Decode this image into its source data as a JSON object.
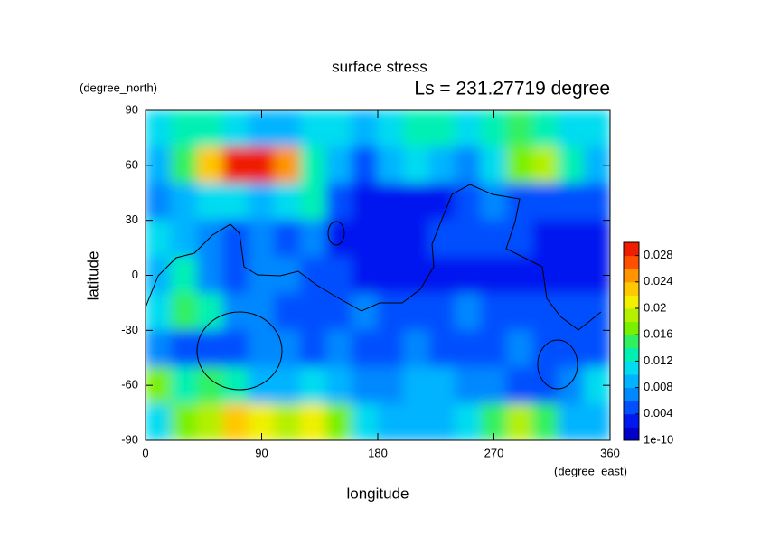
{
  "chart_data": {
    "type": "heatmap",
    "title": "surface stress",
    "subtitle": "Ls = 231.27719 degree",
    "xlabel": "longitude",
    "xunit": "(degree_east)",
    "ylabel": "latitude",
    "yunit": "(degree_north)",
    "xlim": [
      0,
      360
    ],
    "xticks": [
      0,
      90,
      180,
      270,
      360
    ],
    "ylim": [
      -90,
      90
    ],
    "yticks": [
      -90,
      -60,
      -30,
      0,
      30,
      60,
      90
    ],
    "x": [
      10,
      30,
      50,
      70,
      90,
      110,
      130,
      150,
      170,
      190,
      210,
      230,
      250,
      270,
      290,
      310,
      330,
      350
    ],
    "y": [
      80,
      60,
      40,
      20,
      0,
      -20,
      -40,
      -60,
      -80
    ],
    "z": [
      [
        0.01,
        0.012,
        0.012,
        0.01,
        0.008,
        0.008,
        0.01,
        0.01,
        0.008,
        0.01,
        0.012,
        0.012,
        0.01,
        0.012,
        0.014,
        0.012,
        0.01,
        0.01
      ],
      [
        0.008,
        0.014,
        0.022,
        0.03,
        0.03,
        0.024,
        0.012,
        0.008,
        0.004,
        0.008,
        0.01,
        0.008,
        0.006,
        0.01,
        0.016,
        0.018,
        0.012,
        0.008
      ],
      [
        0.006,
        0.008,
        0.01,
        0.01,
        0.008,
        0.01,
        0.012,
        0.004,
        0.002,
        0.002,
        0.002,
        0.002,
        0.004,
        0.006,
        0.004,
        0.004,
        0.004,
        0.004
      ],
      [
        0.01,
        0.008,
        0.006,
        0.004,
        0.006,
        0.004,
        0.006,
        0.002,
        0.002,
        0.002,
        0.002,
        0.004,
        0.004,
        0.004,
        0.004,
        0.002,
        0.002,
        0.002
      ],
      [
        0.008,
        0.012,
        0.006,
        0.004,
        0.006,
        0.006,
        0.004,
        0.004,
        0.002,
        0.002,
        0.002,
        0.002,
        0.002,
        0.002,
        0.002,
        0.002,
        0.002,
        0.002
      ],
      [
        0.01,
        0.014,
        0.012,
        0.006,
        0.006,
        0.004,
        0.004,
        0.004,
        0.006,
        0.004,
        0.004,
        0.004,
        0.006,
        0.004,
        0.004,
        0.004,
        0.004,
        0.004
      ],
      [
        0.006,
        0.004,
        0.004,
        0.004,
        0.006,
        0.006,
        0.004,
        0.006,
        0.004,
        0.004,
        0.006,
        0.004,
        0.004,
        0.004,
        0.006,
        0.004,
        0.004,
        0.004
      ],
      [
        0.016,
        0.012,
        0.014,
        0.012,
        0.008,
        0.008,
        0.01,
        0.008,
        0.006,
        0.006,
        0.008,
        0.008,
        0.006,
        0.006,
        0.004,
        0.004,
        0.006,
        0.01
      ],
      [
        0.01,
        0.016,
        0.018,
        0.022,
        0.02,
        0.018,
        0.02,
        0.016,
        0.01,
        0.008,
        0.008,
        0.008,
        0.01,
        0.014,
        0.018,
        0.014,
        0.008,
        0.008
      ]
    ],
    "clim": [
      0,
      0.03
    ],
    "cticks": [
      1e-10,
      0.004,
      0.008,
      0.012,
      0.016,
      0.02,
      0.024,
      0.028
    ],
    "colors": [
      "#0000c8",
      "#0018f0",
      "#0050ff",
      "#0088ff",
      "#00b4ff",
      "#00dcf0",
      "#00f0b4",
      "#30f060",
      "#78f000",
      "#b4f000",
      "#f0f000",
      "#ffc800",
      "#ff9600",
      "#ff5000",
      "#f01e00"
    ]
  }
}
